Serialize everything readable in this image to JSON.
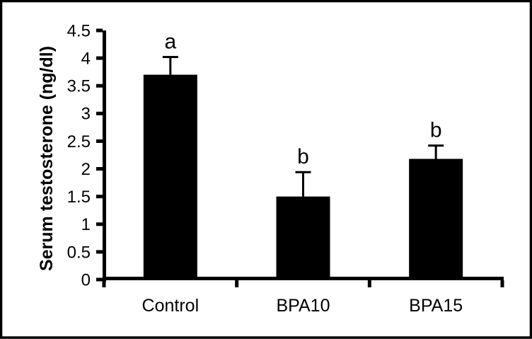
{
  "figure": {
    "background": "#ffffff",
    "frame_color": "#000000"
  },
  "chart_data": {
    "type": "bar",
    "title": "",
    "xlabel": "",
    "ylabel": "Serum testosterone (ng/dl)",
    "categories": [
      "Control",
      "BPA10",
      "BPA15"
    ],
    "values": [
      3.7,
      1.5,
      2.18
    ],
    "error_plus": [
      0.32,
      0.44,
      0.24
    ],
    "significance_letters": [
      "a",
      "b",
      "b"
    ],
    "ylim": [
      0,
      4.5
    ],
    "ytick_step": 0.5,
    "ytick_labels": [
      "0",
      "0.5",
      "1",
      "1.5",
      "2",
      "2.5",
      "3",
      "3.5",
      "4",
      "4.5"
    ],
    "grid": false,
    "legend": false,
    "bar_color": "#000000",
    "axis_color": "#000000",
    "text_color": "#000000",
    "error_bar_color": "#000000"
  }
}
